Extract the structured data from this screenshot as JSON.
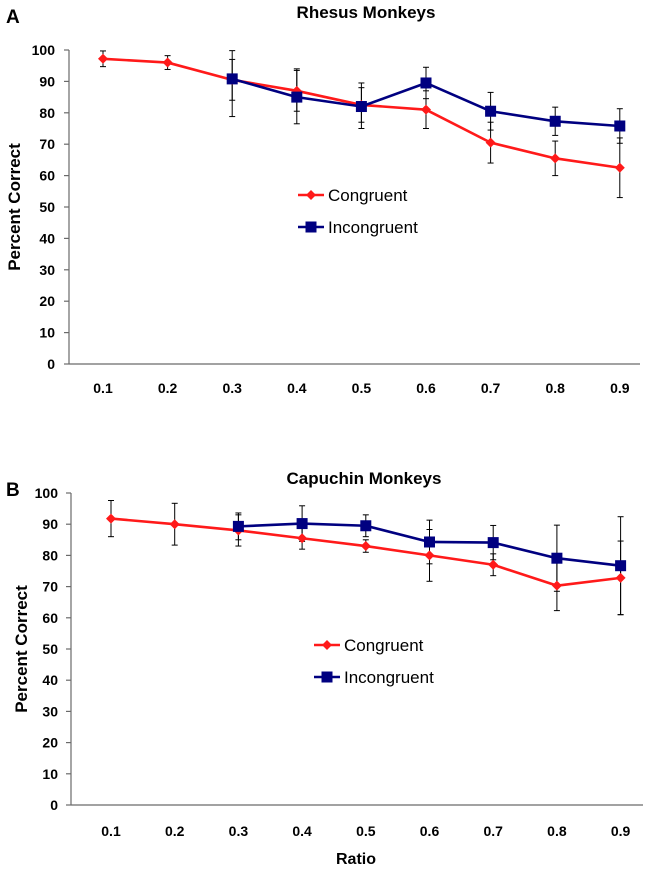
{
  "chart_data": [
    {
      "type": "line",
      "panel": "A",
      "title": "Rhesus Monkeys",
      "xlabel": "",
      "ylabel": "Percent Correct",
      "categories": [
        "0.1",
        "0.2",
        "0.3",
        "0.4",
        "0.5",
        "0.6",
        "0.7",
        "0.8",
        "0.9"
      ],
      "ylim": [
        0,
        100
      ],
      "yticks": [
        "0",
        "10",
        "20",
        "30",
        "40",
        "50",
        "60",
        "70",
        "80",
        "90",
        "100"
      ],
      "legend_position": "center",
      "series": [
        {
          "name": "Congruent",
          "color": "#ff1a1a",
          "marker": "diamond",
          "values": [
            97.2,
            96.0,
            90.5,
            87.0,
            82.5,
            81.0,
            70.5,
            65.5,
            62.5
          ],
          "err_low": [
            2.5,
            2.2,
            6.5,
            6.5,
            5.5,
            6.0,
            6.5,
            5.5,
            9.5
          ],
          "err_high": [
            2.5,
            2.2,
            6.5,
            6.5,
            5.5,
            6.0,
            6.5,
            5.5,
            9.5
          ]
        },
        {
          "name": "Incongruent",
          "color": "#000080",
          "marker": "square",
          "values": [
            null,
            null,
            90.8,
            85.0,
            82.0,
            89.5,
            80.5,
            77.3,
            75.8
          ],
          "err_low": [
            0,
            0,
            12.0,
            8.5,
            7.0,
            5.0,
            6.0,
            4.5,
            5.5
          ],
          "err_high": [
            0,
            0,
            9.0,
            9.0,
            7.5,
            5.0,
            6.0,
            4.5,
            5.5
          ]
        }
      ]
    },
    {
      "type": "line",
      "panel": "B",
      "title": "Capuchin Monkeys",
      "xlabel": "Ratio",
      "ylabel": "Percent Correct",
      "categories": [
        "0.1",
        "0.2",
        "0.3",
        "0.4",
        "0.5",
        "0.6",
        "0.7",
        "0.8",
        "0.9"
      ],
      "ylim": [
        0,
        100
      ],
      "yticks": [
        "0",
        "10",
        "20",
        "30",
        "40",
        "50",
        "60",
        "70",
        "80",
        "90",
        "100"
      ],
      "legend_position": "center",
      "series": [
        {
          "name": "Congruent",
          "color": "#ff1a1a",
          "marker": "diamond",
          "values": [
            91.8,
            90.0,
            88.0,
            85.5,
            83.0,
            80.0,
            77.0,
            70.3,
            72.8
          ],
          "err_low": [
            5.8,
            6.7,
            5.0,
            3.5,
            2.0,
            8.3,
            3.5,
            8.0,
            11.8
          ],
          "err_high": [
            5.8,
            6.7,
            5.0,
            3.5,
            2.0,
            8.3,
            3.5,
            8.0,
            11.8
          ]
        },
        {
          "name": "Incongruent",
          "color": "#000080",
          "marker": "square",
          "values": [
            null,
            null,
            89.3,
            90.2,
            89.5,
            84.3,
            84.1,
            79.1,
            76.7
          ],
          "err_low": [
            0,
            0,
            4.3,
            5.7,
            3.5,
            7.0,
            5.5,
            10.6,
            15.7
          ],
          "err_high": [
            0,
            0,
            4.3,
            5.7,
            3.5,
            7.0,
            5.5,
            10.6,
            15.7
          ]
        }
      ]
    }
  ]
}
